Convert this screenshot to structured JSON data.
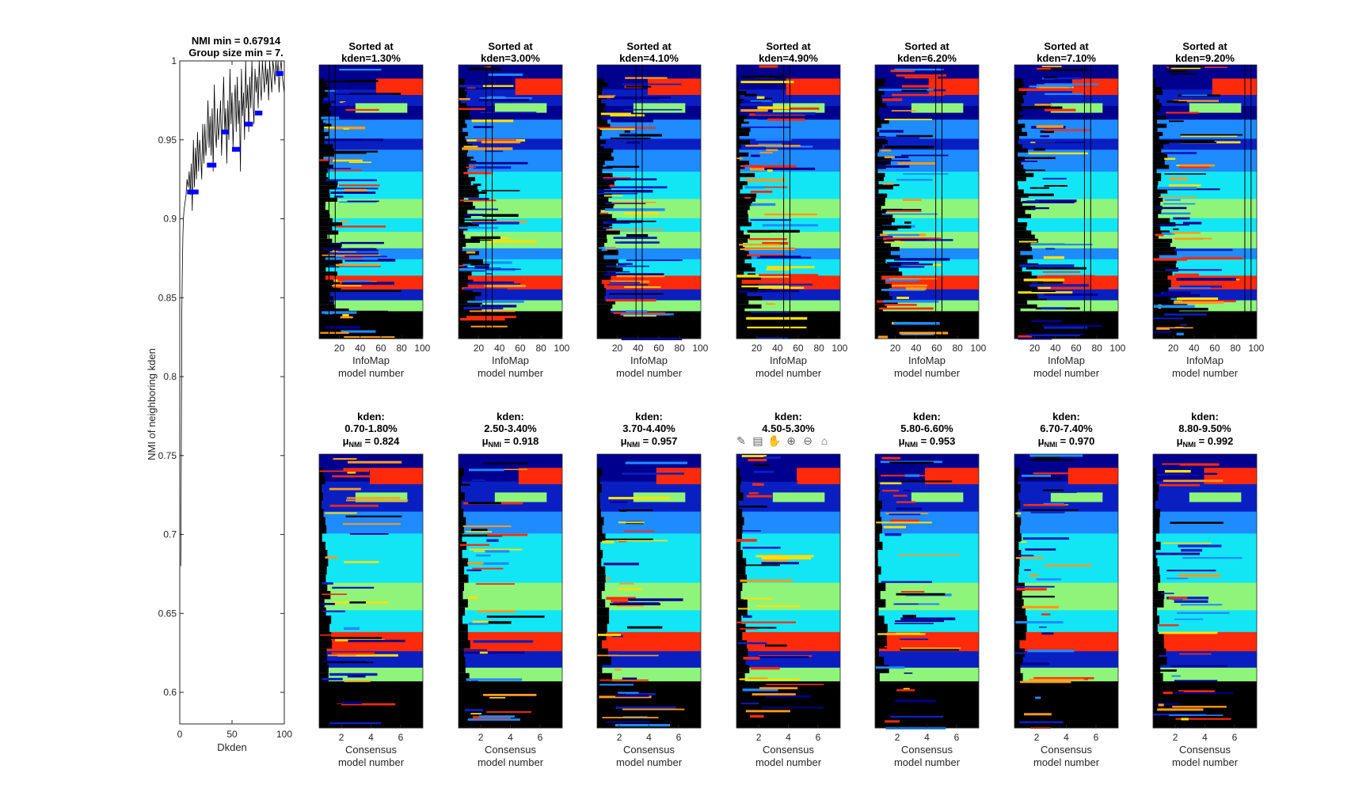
{
  "chart_data": [
    {
      "type": "line",
      "title": [
        "NMI min = 0.67914",
        "Group size min = 7."
      ],
      "xlabel": "Dkden",
      "ylabel": "NMI of neighboring kden",
      "xlim": [
        0,
        100
      ],
      "ylim": [
        0.58,
        1.0
      ],
      "xticks": [
        0,
        50,
        100
      ],
      "yticks": [
        0.6,
        0.65,
        0.7,
        0.75,
        0.8,
        0.85,
        0.9,
        0.95,
        1
      ],
      "ytick_labels": [
        "0.6",
        "0.65",
        "0.7",
        "0.75",
        "0.8",
        "0.85",
        "0.9",
        "0.95",
        "1"
      ],
      "line_color": "#000000",
      "series": [
        {
          "x": [
            1,
            1.5,
            2,
            2.5,
            3,
            3.5,
            4,
            5,
            6,
            7,
            8,
            9,
            10,
            11,
            12,
            13,
            14,
            15,
            16,
            17,
            18,
            19,
            20,
            21,
            22,
            23,
            24,
            25,
            26,
            27,
            28,
            29,
            30,
            31,
            32,
            33,
            34,
            35,
            36,
            37,
            38,
            39,
            40,
            41,
            42,
            43,
            44,
            45,
            46,
            47,
            48,
            49,
            50,
            51,
            52,
            53,
            54,
            55,
            56,
            57,
            58,
            59,
            60,
            61,
            62,
            63,
            64,
            65,
            66,
            67,
            68,
            69,
            70,
            71,
            72,
            73,
            74,
            75,
            76,
            77,
            78,
            79,
            80,
            81,
            82,
            83,
            84,
            85,
            86,
            87,
            88,
            89,
            90,
            91,
            92,
            93,
            94,
            95,
            96,
            97,
            98,
            99,
            100
          ],
          "y": [
            0.68,
            0.76,
            0.84,
            0.87,
            0.89,
            0.9,
            0.905,
            0.91,
            0.915,
            0.925,
            0.92,
            0.93,
            0.915,
            0.935,
            0.905,
            0.95,
            0.92,
            0.945,
            0.925,
            0.955,
            0.93,
            0.95,
            0.94,
            0.925,
            0.96,
            0.935,
            0.96,
            0.94,
            0.95,
            0.975,
            0.945,
            0.965,
            0.94,
            0.97,
            0.93,
            0.985,
            0.955,
            0.945,
            0.97,
            0.95,
            0.96,
            0.975,
            0.94,
            0.965,
            0.99,
            0.955,
            0.97,
            0.935,
            0.975,
            0.95,
            0.995,
            0.96,
            0.98,
            0.945,
            0.97,
            0.985,
            0.955,
            0.99,
            0.96,
            0.975,
            0.93,
            0.995,
            0.965,
            0.98,
            0.95,
            1.0,
            0.97,
            0.985,
            0.955,
            0.99,
            0.97,
            1.0,
            0.975,
            0.96,
            0.995,
            0.98,
            0.99,
            0.97,
            1.0,
            0.985,
            0.975,
            1.0,
            0.99,
            0.98,
            1.0,
            0.985,
            0.995,
            0.975,
            1.0,
            0.99,
            0.98,
            1.0,
            0.995,
            0.985,
            1.0,
            0.99,
            1.0,
            0.98,
            0.995,
            1.0,
            0.99,
            0.985,
            0.98
          ]
        }
      ],
      "blue_segments": [
        {
          "x": [
            7,
            18
          ],
          "y": 0.917
        },
        {
          "x": [
            26,
            35
          ],
          "y": 0.934
        },
        {
          "x": [
            40,
            47
          ],
          "y": 0.955
        },
        {
          "x": [
            50,
            58
          ],
          "y": 0.944
        },
        {
          "x": [
            62,
            70
          ],
          "y": 0.96
        },
        {
          "x": [
            72,
            79
          ],
          "y": 0.967
        },
        {
          "x": [
            92,
            99
          ],
          "y": 0.992
        }
      ],
      "segment_color": "#0000ff"
    },
    {
      "type": "heatmap",
      "colormap": "jet (black = unassigned)",
      "top_row": {
        "xlabel": [
          "InfoMap",
          "model number"
        ],
        "xticks": [
          20,
          40,
          60,
          80,
          100
        ],
        "panels": [
          {
            "title": [
              "Sorted at",
              "kden=1.30%"
            ],
            "sort_col": 13
          },
          {
            "title": [
              "Sorted at",
              "kden=3.00%"
            ],
            "sort_col": 30
          },
          {
            "title": [
              "Sorted at",
              "kden=4.10%"
            ],
            "sort_col": 41
          },
          {
            "title": [
              "Sorted at",
              "kden=4.90%"
            ],
            "sort_col": 49
          },
          {
            "title": [
              "Sorted at",
              "kden=6.20%"
            ],
            "sort_col": 62
          },
          {
            "title": [
              "Sorted at",
              "kden=7.10%"
            ],
            "sort_col": 71
          },
          {
            "title": [
              "Sorted at",
              "kden=9.20%"
            ],
            "sort_col": 92
          }
        ]
      },
      "bottom_row": {
        "xlabel": [
          "Consensus",
          "model number"
        ],
        "xticks": [
          2,
          4,
          6
        ],
        "panels": [
          {
            "title": [
              "kden:",
              "0.70-1.80%"
            ],
            "mu_label": "μ",
            "mu_sub": "NMI",
            "mu_value": " = 0.824"
          },
          {
            "title": [
              "kden:",
              "2.50-3.40%"
            ],
            "mu_label": "μ",
            "mu_sub": "NMI",
            "mu_value": " = 0.918"
          },
          {
            "title": [
              "kden:",
              "3.70-4.40%"
            ],
            "mu_label": "μ",
            "mu_sub": "NMI",
            "mu_value": " = 0.957"
          },
          {
            "title": [
              "kden:",
              "4.50-5.30%"
            ],
            "mu_label": "",
            "mu_sub": "",
            "mu_value": ""
          },
          {
            "title": [
              "kden:",
              "5.80-6.60%"
            ],
            "mu_label": "μ",
            "mu_sub": "NMI",
            "mu_value": " = 0.953"
          },
          {
            "title": [
              "kden:",
              "6.70-7.40%"
            ],
            "mu_label": "μ",
            "mu_sub": "NMI",
            "mu_value": " = 0.970"
          },
          {
            "title": [
              "kden:",
              "8.80-9.50%"
            ],
            "mu_label": "μ",
            "mu_sub": "NMI",
            "mu_value": " = 0.992"
          }
        ]
      },
      "community_colors": {
        "unassigned": "#000000",
        "dark_blue": "#00008f",
        "blue": "#0a1fc2",
        "mid_blue": "#1e8bff",
        "cyan": "#12e6f5",
        "green": "#8ff57a",
        "yellow": "#ffe000",
        "orange": "#ff9a1a",
        "red": "#ff2a0a"
      }
    }
  ],
  "toolbar": [
    {
      "name": "brush-icon",
      "glyph": "✎"
    },
    {
      "name": "datatip-icon",
      "glyph": "▤"
    },
    {
      "name": "pan-icon",
      "glyph": "✋"
    },
    {
      "name": "zoom-in-icon",
      "glyph": "⊕"
    },
    {
      "name": "zoom-out-icon",
      "glyph": "⊖"
    },
    {
      "name": "home-icon",
      "glyph": "⌂"
    }
  ]
}
